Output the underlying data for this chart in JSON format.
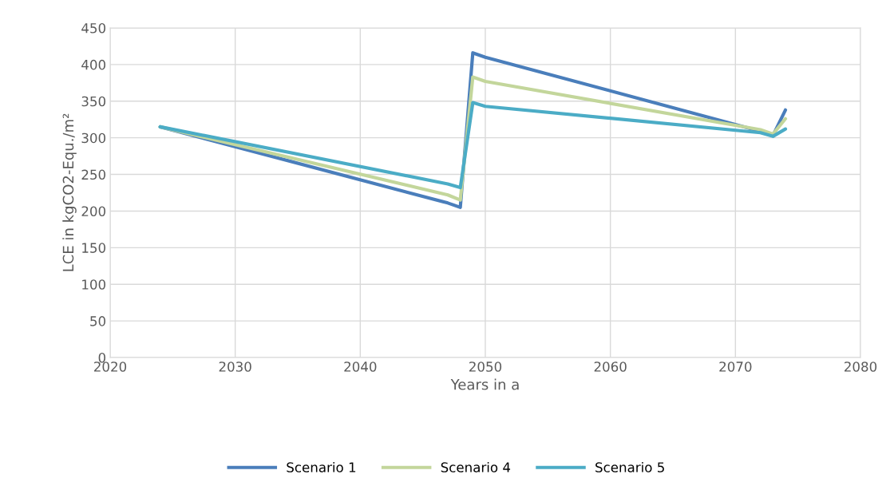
{
  "chart_data": {
    "type": "line",
    "xlabel": "Years in a",
    "ylabel": "LCE in kgCO2-Equ./m²",
    "x": [
      2024,
      2047,
      2048,
      2049,
      2050,
      2072,
      2073,
      2074
    ],
    "series": [
      {
        "name": "Scenario 1",
        "color": "#4a7ebb",
        "values": [
          315,
          211,
          205,
          416,
          410,
          309,
          303,
          338
        ]
      },
      {
        "name": "Scenario 4",
        "color": "#c3d69b",
        "values": [
          315,
          222,
          215,
          383,
          377,
          311,
          305,
          326
        ]
      },
      {
        "name": "Scenario 5",
        "color": "#4bacc6",
        "values": [
          315,
          237,
          232,
          348,
          343,
          307,
          302,
          312
        ]
      }
    ],
    "xlim": [
      2020,
      2080
    ],
    "xticks": [
      2020,
      2030,
      2040,
      2050,
      2060,
      2070,
      2080
    ],
    "ylim": [
      0,
      450
    ],
    "yticks": [
      0,
      50,
      100,
      150,
      200,
      250,
      300,
      350,
      400,
      450
    ],
    "grid": true,
    "legend": "bottom",
    "marker": "none",
    "line_style": "solid"
  }
}
